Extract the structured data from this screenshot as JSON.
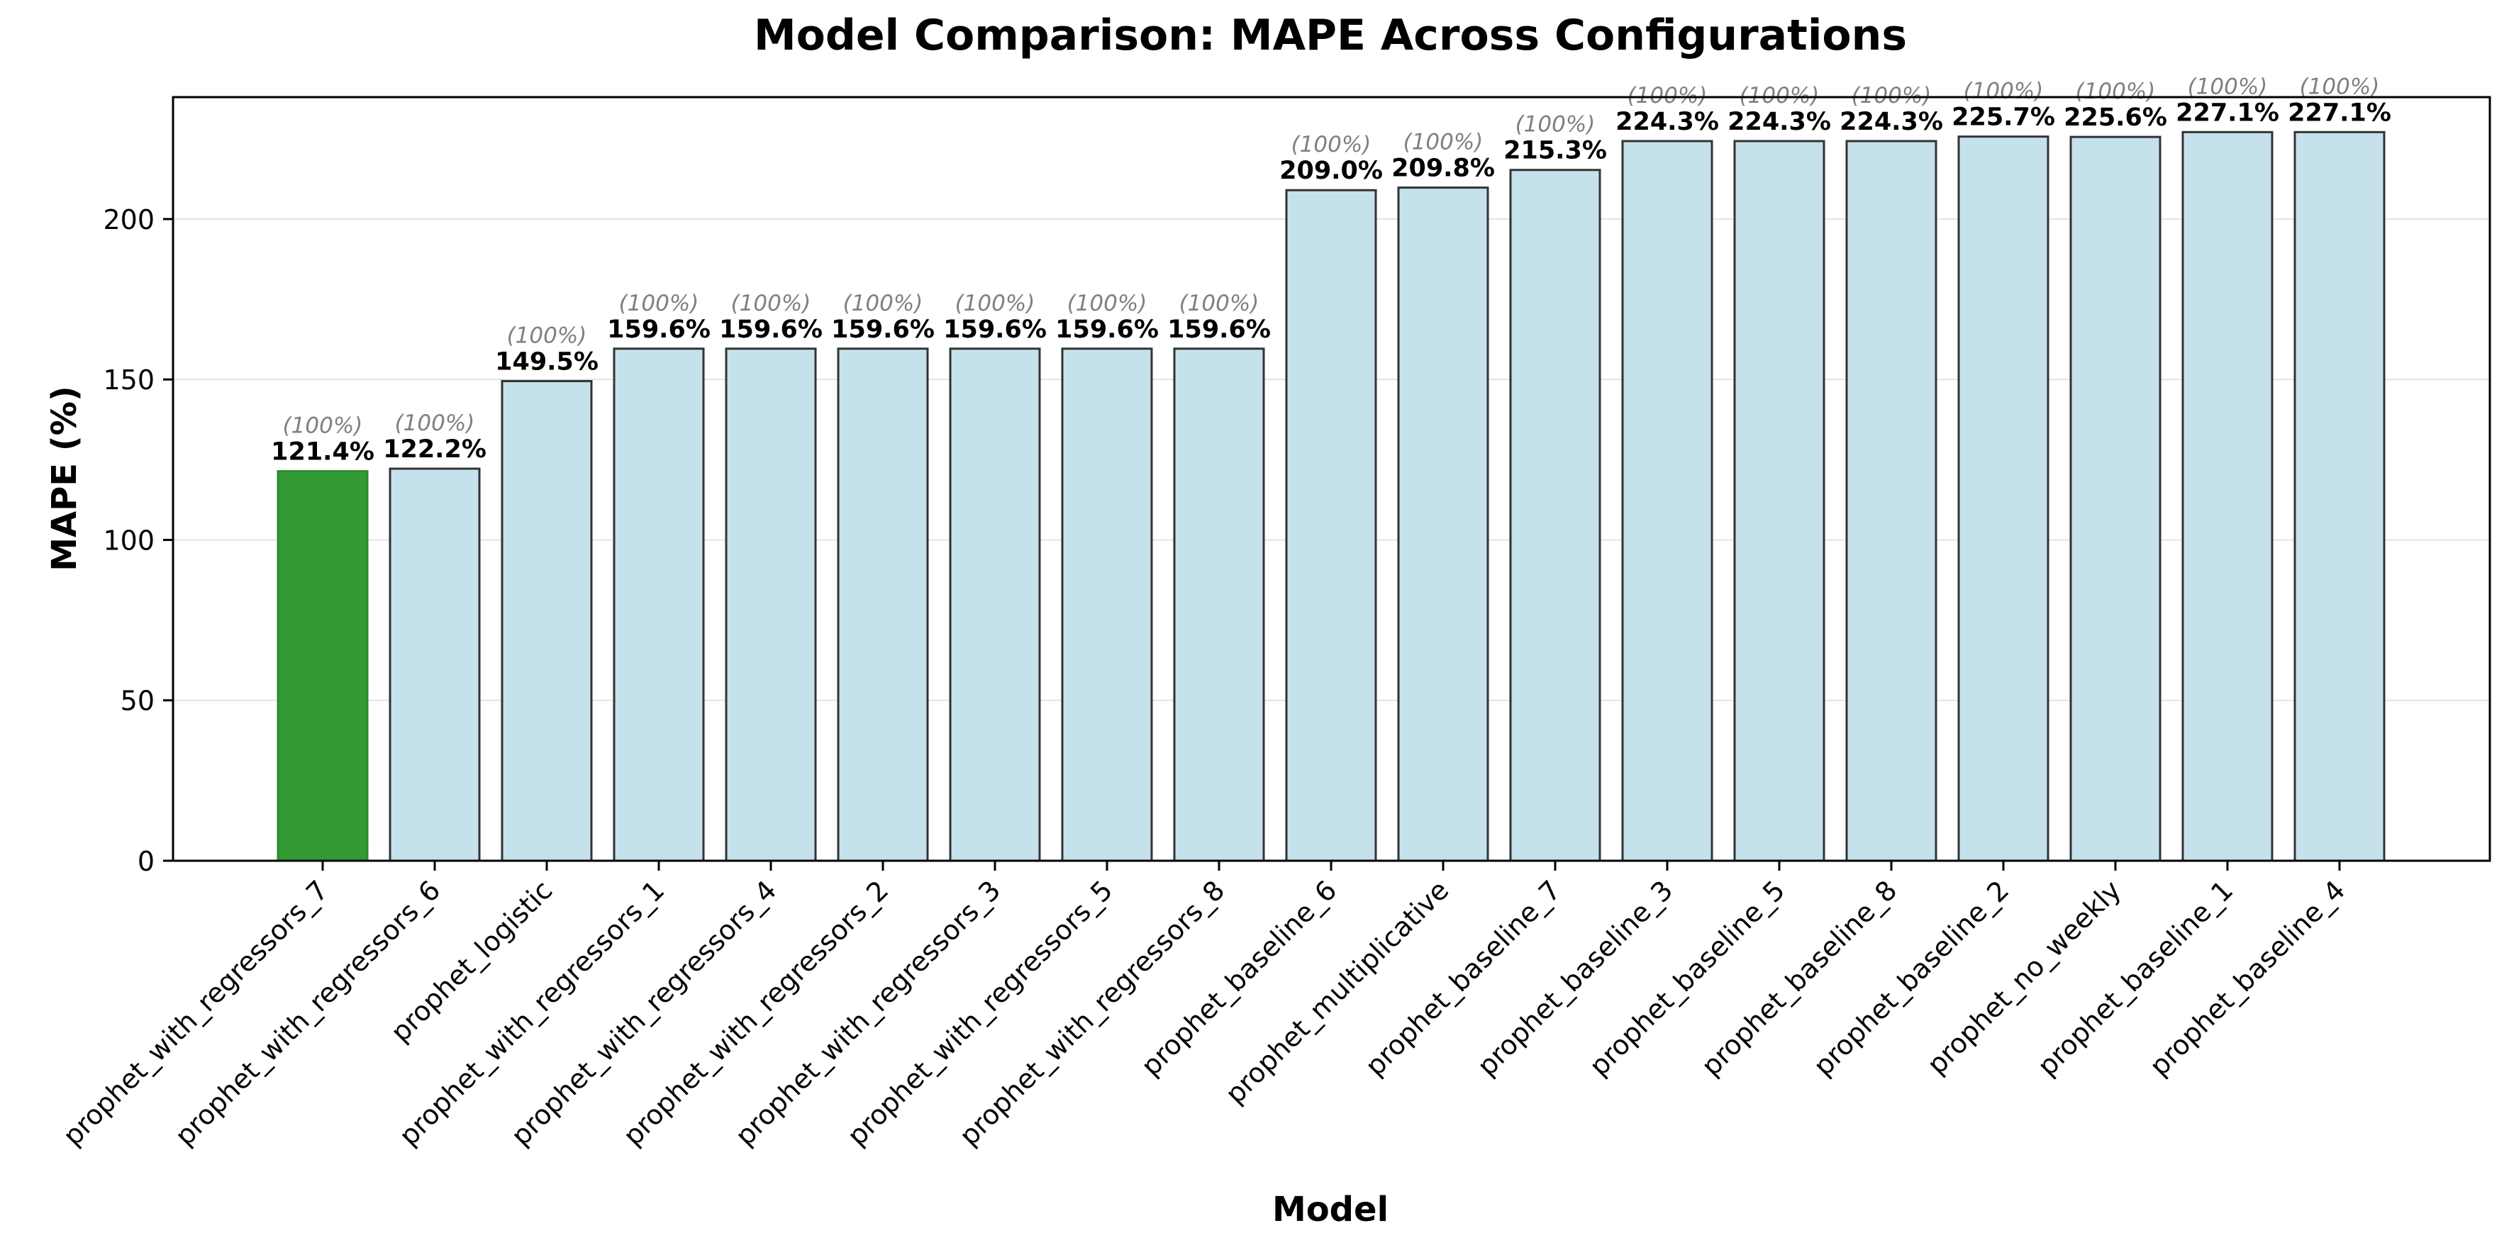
{
  "chart_data": {
    "type": "bar",
    "title": "Model Comparison: MAPE Across Configurations",
    "xlabel": "Model",
    "ylabel": "MAPE (%)",
    "ylim": [
      0,
      238
    ],
    "yticks": [
      0,
      50,
      100,
      150,
      200
    ],
    "grid": "y",
    "legend": "none",
    "categories": [
      "prophet_with_regressors_7",
      "prophet_with_regressors_6",
      "prophet_logistic",
      "prophet_with_regressors_1",
      "prophet_with_regressors_4",
      "prophet_with_regressors_2",
      "prophet_with_regressors_3",
      "prophet_with_regressors_5",
      "prophet_with_regressors_8",
      "prophet_baseline_6",
      "prophet_multiplicative",
      "prophet_baseline_7",
      "prophet_baseline_3",
      "prophet_baseline_5",
      "prophet_baseline_8",
      "prophet_baseline_2",
      "prophet_no_weekly",
      "prophet_baseline_1",
      "prophet_baseline_4"
    ],
    "values": [
      121.4,
      122.2,
      149.5,
      159.6,
      159.6,
      159.6,
      159.6,
      159.6,
      159.6,
      209.0,
      209.8,
      215.3,
      224.3,
      224.3,
      224.3,
      225.7,
      225.6,
      227.1,
      227.1
    ],
    "value_labels": [
      "121.4%",
      "122.2%",
      "149.5%",
      "159.6%",
      "159.6%",
      "159.6%",
      "159.6%",
      "159.6%",
      "159.6%",
      "209.0%",
      "209.8%",
      "215.3%",
      "224.3%",
      "224.3%",
      "224.3%",
      "225.7%",
      "225.6%",
      "227.1%",
      "227.1%"
    ],
    "secondary_labels": [
      "(100%)",
      "(100%)",
      "(100%)",
      "(100%)",
      "(100%)",
      "(100%)",
      "(100%)",
      "(100%)",
      "(100%)",
      "(100%)",
      "(100%)",
      "(100%)",
      "(100%)",
      "(100%)",
      "(100%)",
      "(100%)",
      "(100%)",
      "(100%)",
      "(100%)"
    ],
    "highlight_index": 0,
    "colors": {
      "highlight_fill": "#339933",
      "highlight_edge": "#2b8a2b",
      "bar_fill": "#c5e2ec",
      "bar_edge": "#333333",
      "grid": "#e3e3e3",
      "axis": "#000000",
      "secondary_text": "#808080"
    }
  }
}
